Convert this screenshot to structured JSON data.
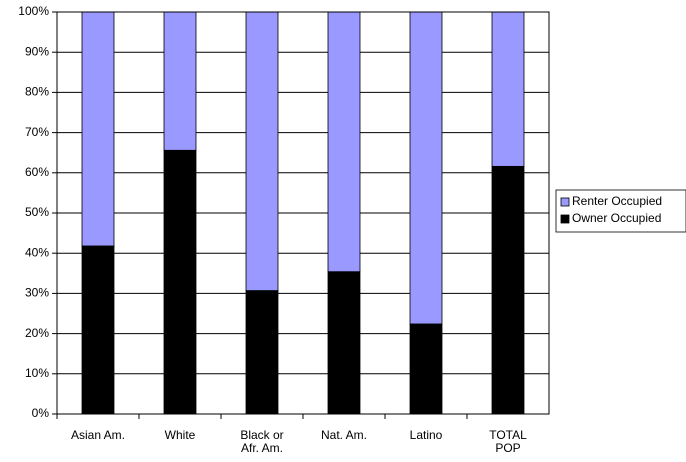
{
  "chart_data": {
    "type": "stacked-bar",
    "categories": [
      "Asian Am.",
      "White",
      "Black or Afr. Am.",
      "Nat. Am.",
      "Latino",
      "TOTAL POP"
    ],
    "series": [
      {
        "name": "Owner Occupied",
        "color": "#000000",
        "values": [
          41.8,
          65.6,
          30.7,
          35.4,
          22.4,
          61.6
        ]
      },
      {
        "name": "Renter Occupied",
        "color": "#9999ff",
        "values": [
          58.2,
          34.4,
          69.3,
          64.6,
          77.6,
          38.4
        ]
      }
    ],
    "ylim": [
      0,
      100
    ],
    "yticks": [
      {
        "value": 0,
        "label": "0%"
      },
      {
        "value": 10,
        "label": "10%"
      },
      {
        "value": 20,
        "label": "20%"
      },
      {
        "value": 30,
        "label": "30%"
      },
      {
        "value": 40,
        "label": "40%"
      },
      {
        "value": 50,
        "label": "50%"
      },
      {
        "value": 60,
        "label": "60%"
      },
      {
        "value": 70,
        "label": "70%"
      },
      {
        "value": 80,
        "label": "80%"
      },
      {
        "value": 90,
        "label": "90%"
      },
      {
        "value": 100,
        "label": "100%"
      }
    ],
    "grid": true,
    "legend": "right"
  }
}
